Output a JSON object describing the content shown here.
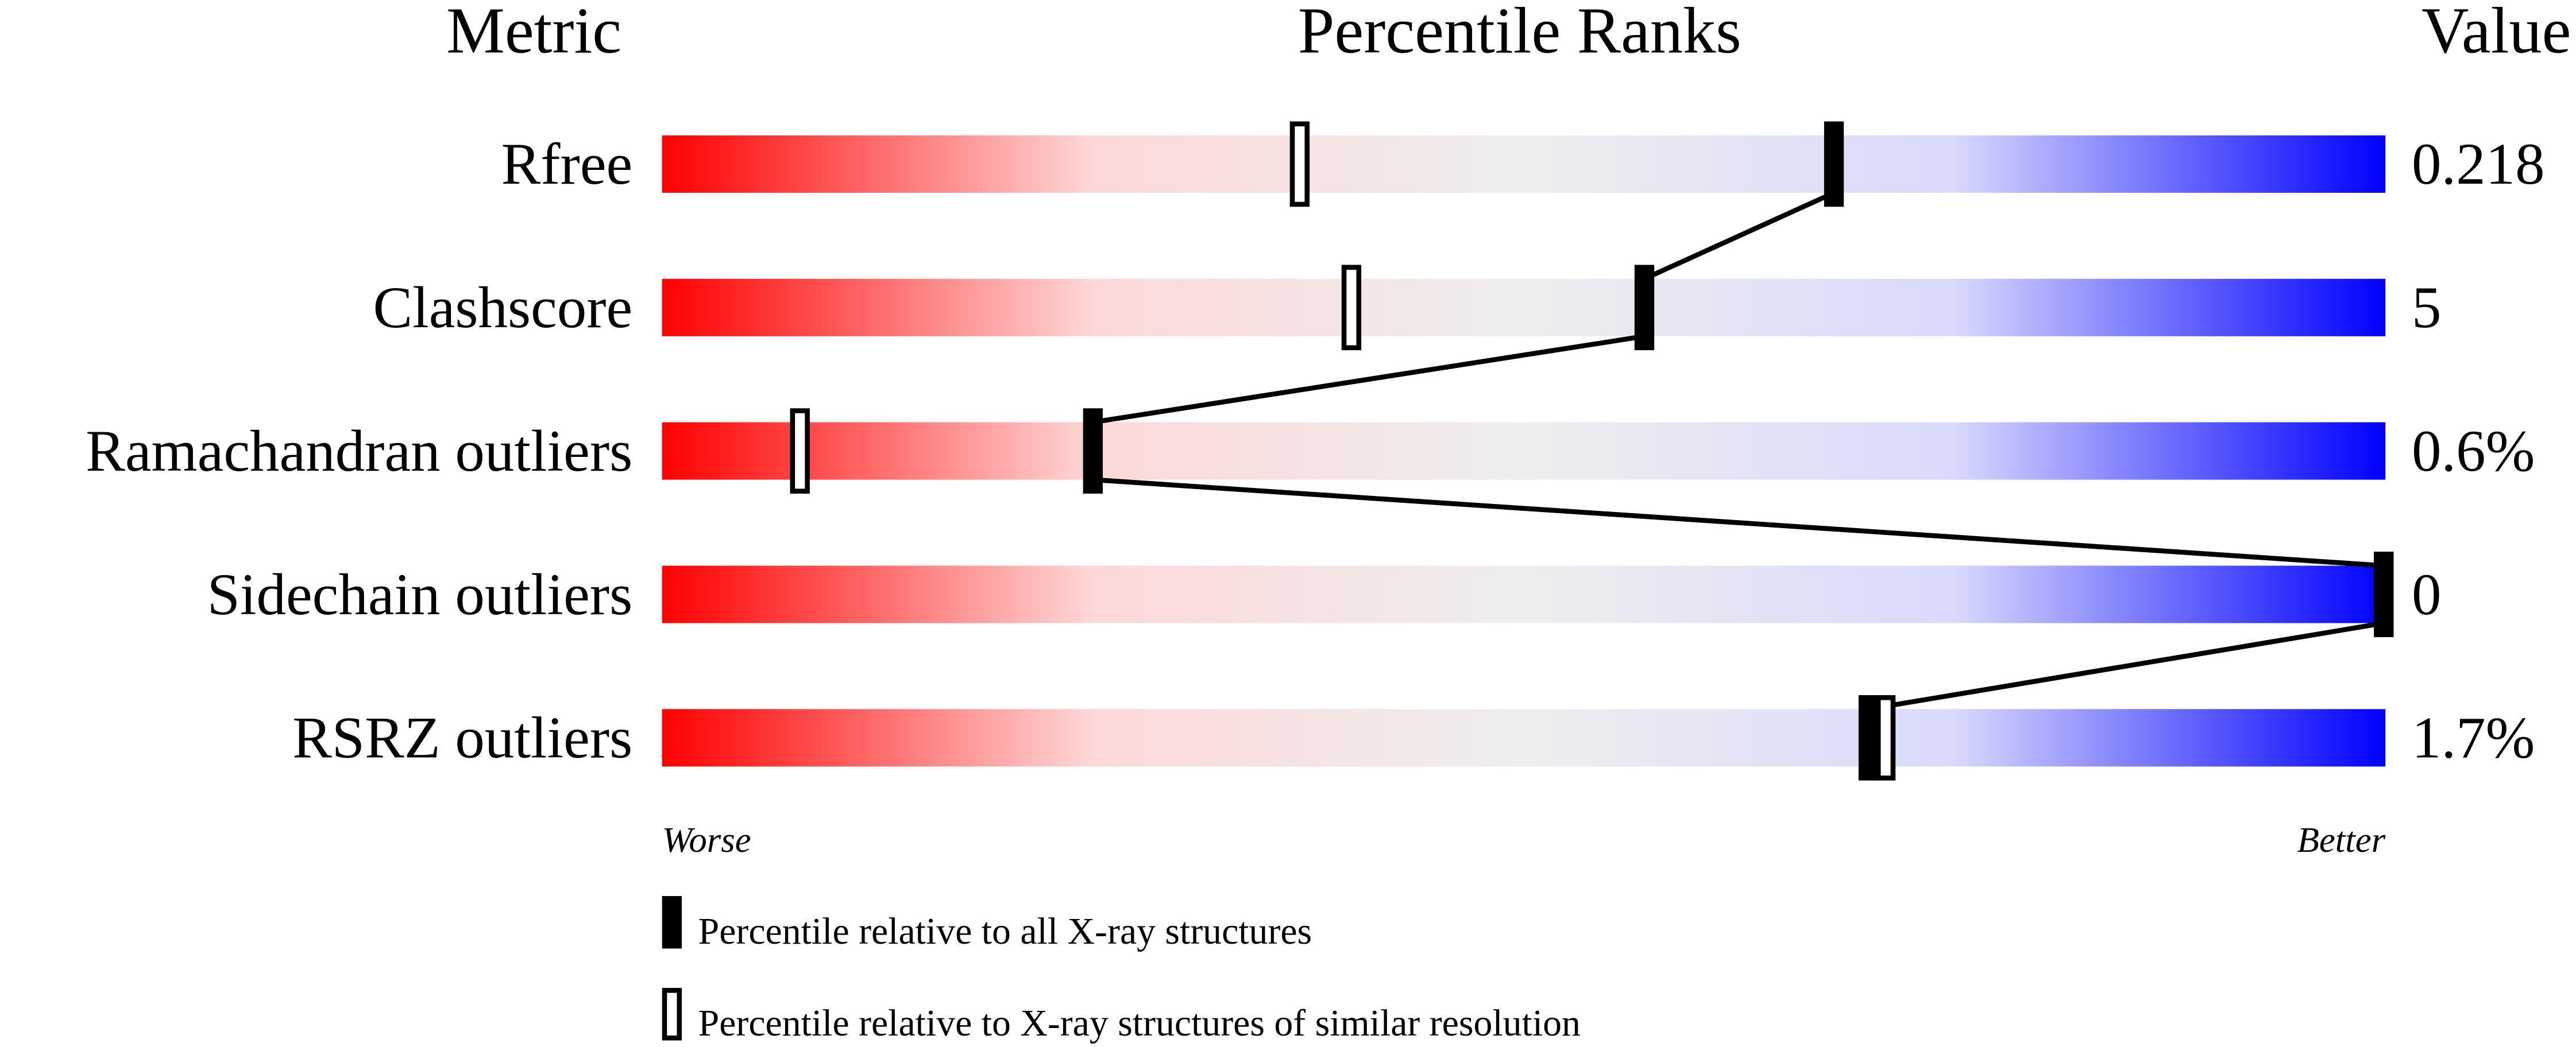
{
  "chart_data": {
    "type": "bar",
    "headers": {
      "metric": "Metric",
      "ranks": "Percentile Ranks",
      "value": "Value"
    },
    "xlim": [
      0,
      100
    ],
    "gradient": [
      "#ff0000",
      "#fdd8d8",
      "#eeeeee",
      "#d9d9fc",
      "#0000ff"
    ],
    "rows": [
      {
        "metric": "Rfree",
        "value": "0.218",
        "percentile_all": 68,
        "percentile_similar": 37
      },
      {
        "metric": "Clashscore",
        "value": "5",
        "percentile_all": 57,
        "percentile_similar": 40
      },
      {
        "metric": "Ramachandran outliers",
        "value": "0.6%",
        "percentile_all": 25,
        "percentile_similar": 8
      },
      {
        "metric": "Sidechain outliers",
        "value": "0",
        "percentile_all": 100,
        "percentile_similar": 100
      },
      {
        "metric": "RSRZ outliers",
        "value": "1.7%",
        "percentile_all": 70,
        "percentile_similar": 71
      }
    ],
    "axis_ends": {
      "left": "Worse",
      "right": "Better"
    },
    "legend": {
      "all": "Percentile relative to all X-ray structures",
      "similar": "Percentile relative to X-ray structures of similar resolution"
    }
  }
}
